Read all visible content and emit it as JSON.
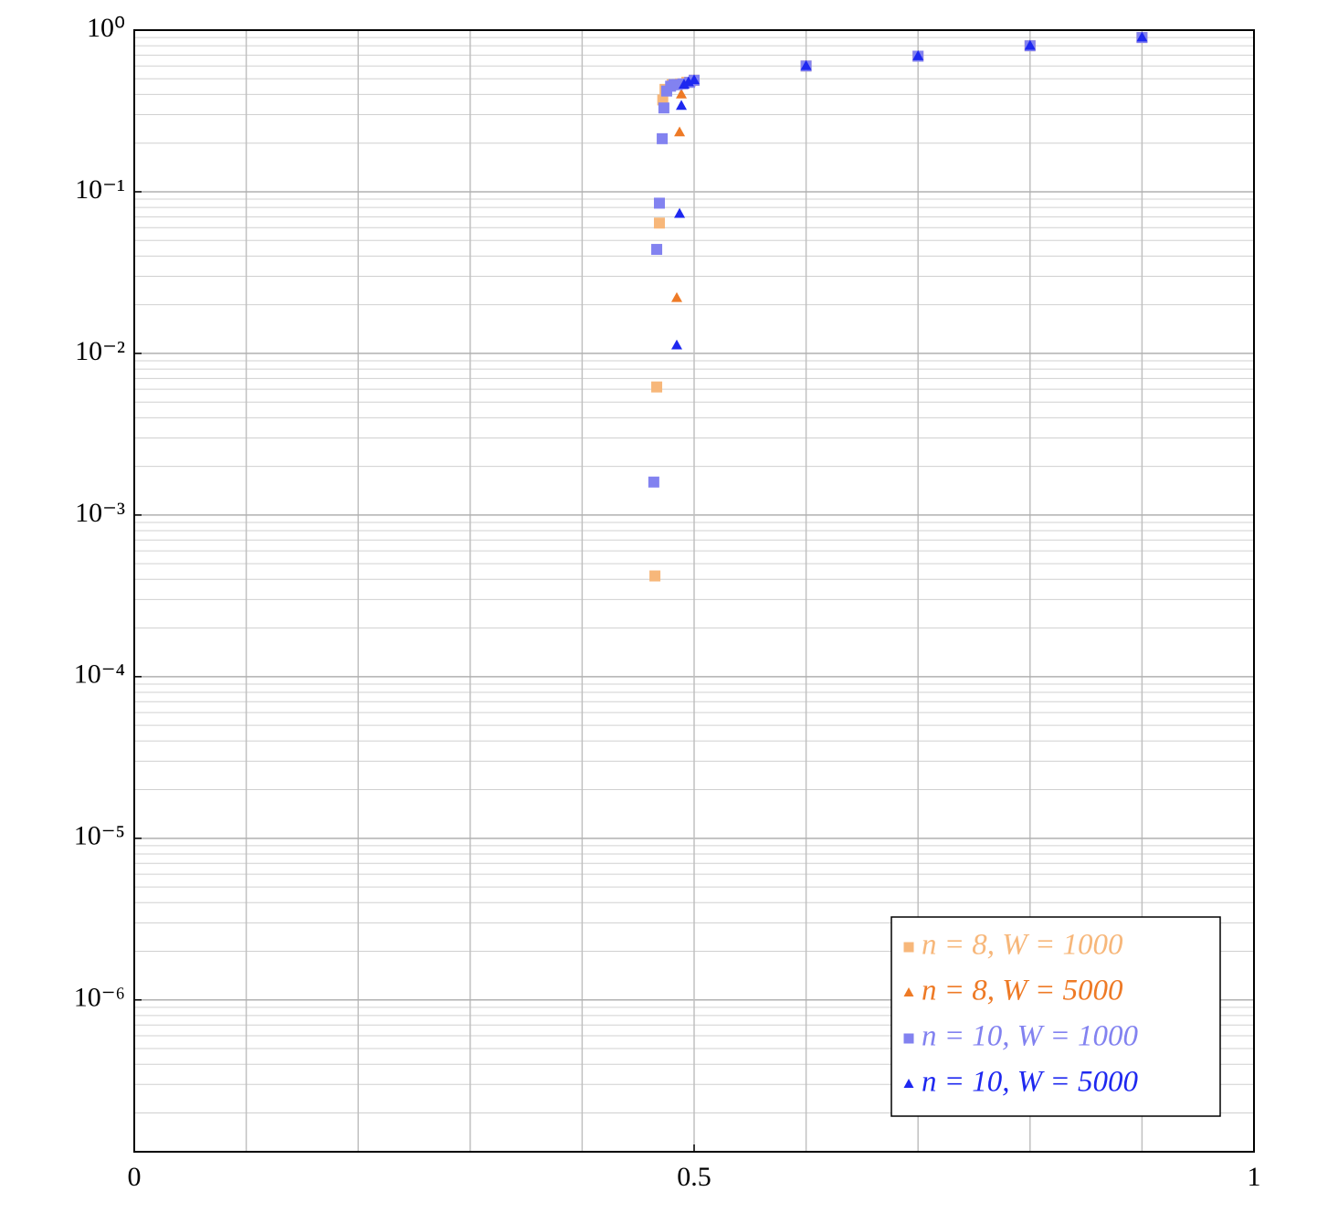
{
  "chart_data": {
    "type": "scatter",
    "log_y": true,
    "grid": true,
    "legend_loc": "lower right",
    "xlim": [
      0,
      1
    ],
    "xticks": [
      0,
      0.5,
      1
    ],
    "xminorticks": [
      0.1,
      0.2,
      0.3,
      0.4,
      0.6,
      0.7,
      0.8,
      0.9
    ],
    "ylim": [
      1.15e-07,
      1
    ],
    "yticks": [
      {
        "value": 1,
        "label": "10⁰"
      },
      {
        "value": 0.1,
        "label": "10⁻¹"
      },
      {
        "value": 0.01,
        "label": "10⁻²"
      },
      {
        "value": 0.001,
        "label": "10⁻³"
      },
      {
        "value": 0.0001,
        "label": "10⁻⁴"
      },
      {
        "value": 1e-05,
        "label": "10⁻⁵"
      },
      {
        "value": 1e-06,
        "label": "10⁻⁶"
      }
    ],
    "series": [
      {
        "name": "n = 8, W = 1000",
        "color": "#f7b77a",
        "marker": "square",
        "x": [
          0.465,
          0.4666,
          0.469,
          0.472,
          0.474,
          0.4804,
          0.4878,
          0.4935,
          0.5,
          0.6,
          0.7,
          0.8,
          0.9
        ],
        "values": [
          0.00042,
          0.0062,
          0.064,
          0.37,
          0.43,
          0.46,
          0.465,
          0.476,
          0.49,
          0.6,
          0.69,
          0.8,
          0.9
        ]
      },
      {
        "name": "n = 8, W = 5000",
        "color": "#ee7a26",
        "marker": "triangle",
        "x": [
          0.4845,
          0.487,
          0.4886,
          0.492,
          0.4967,
          0.5,
          0.6,
          0.7,
          0.8,
          0.9
        ],
        "values": [
          0.022,
          0.233,
          0.4,
          0.465,
          0.476,
          0.49,
          0.6,
          0.69,
          0.8,
          0.9
        ]
      },
      {
        "name": "n = 10, W = 1000",
        "color": "#8282f0",
        "marker": "square",
        "x": [
          0.464,
          0.4666,
          0.469,
          0.4715,
          0.473,
          0.4755,
          0.479,
          0.482,
          0.485,
          0.49,
          0.496,
          0.5,
          0.6,
          0.7,
          0.8,
          0.9
        ],
        "values": [
          0.0016,
          0.044,
          0.085,
          0.213,
          0.33,
          0.42,
          0.45,
          0.46,
          0.46,
          0.465,
          0.475,
          0.49,
          0.6,
          0.69,
          0.8,
          0.9
        ]
      },
      {
        "name": "n = 10, W = 5000",
        "color": "#1e28f0",
        "marker": "triangle",
        "x": [
          0.4845,
          0.487,
          0.4886,
          0.491,
          0.495,
          0.5,
          0.6,
          0.7,
          0.8,
          0.9
        ],
        "values": [
          0.0112,
          0.073,
          0.34,
          0.46,
          0.476,
          0.49,
          0.6,
          0.69,
          0.8,
          0.9
        ]
      }
    ]
  }
}
